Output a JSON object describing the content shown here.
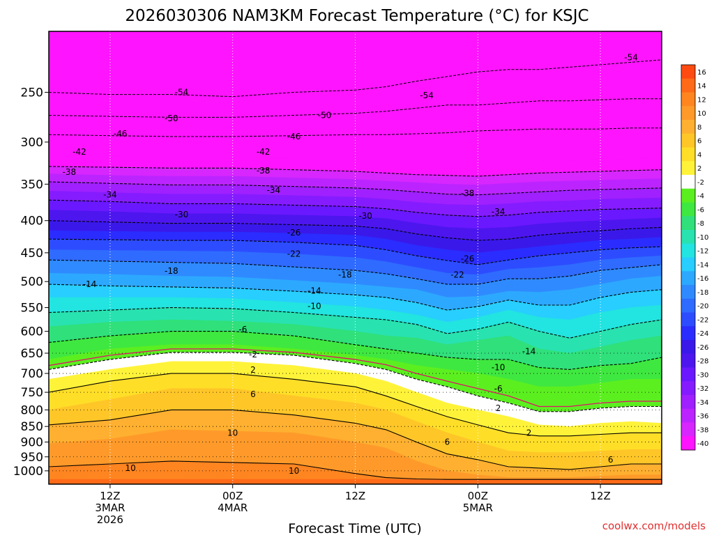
{
  "chart_data": {
    "type": "heatmap",
    "title": "2026030306 NAM3KM Forecast Temperature (°C) for KSJC",
    "xlabel": "Forecast Time (UTC)",
    "ylabel": "",
    "y_scale": "log-pressure",
    "ylim": [
      1050,
      200
    ],
    "y_ticks": [
      250,
      300,
      350,
      400,
      450,
      500,
      550,
      600,
      650,
      700,
      750,
      800,
      850,
      900,
      950,
      1000
    ],
    "x_ticks": [
      {
        "line1": "12Z",
        "line2": "3MAR",
        "line3": "2026"
      },
      {
        "line1": "00Z",
        "line2": "4MAR",
        "line3": ""
      },
      {
        "line1": "12Z",
        "line2": "",
        "line3": ""
      },
      {
        "line1": "00Z",
        "line2": "5MAR",
        "line3": ""
      },
      {
        "line1": "12Z",
        "line2": "",
        "line3": ""
      }
    ],
    "xlim_hours": [
      0,
      60
    ],
    "x_tick_hours": [
      6,
      18,
      30,
      42,
      54
    ],
    "grid": true,
    "colorbar": {
      "position": "right",
      "levels": [
        16,
        14,
        12,
        10,
        8,
        6,
        4,
        2,
        -2,
        -4,
        -6,
        -8,
        -10,
        -12,
        -14,
        -16,
        -18,
        -20,
        -22,
        -24,
        -26,
        -28,
        -30,
        -32,
        -34,
        -36,
        -38,
        -40
      ],
      "colors": [
        "#ff4b12",
        "#ff6a18",
        "#ff8520",
        "#ff9a2a",
        "#ffb030",
        "#ffc628",
        "#ffde28",
        "#fff33a",
        "#ffffff",
        "#5cef20",
        "#3fe840",
        "#30e07a",
        "#28e2b0",
        "#22e4e0",
        "#27ceff",
        "#2da8ff",
        "#2f8aff",
        "#2f6bff",
        "#2d4cff",
        "#2b2cff",
        "#3a18ea",
        "#4d16ee",
        "#6a18ff",
        "#851cff",
        "#a020ff",
        "#bc24ff",
        "#d826ff",
        "#ff14ff"
      ]
    },
    "contour_labels": [
      {
        "value": "-54",
        "hour": 13,
        "p": 250
      },
      {
        "value": "-54",
        "hour": 37,
        "p": 253
      },
      {
        "value": "-54",
        "hour": 57,
        "p": 220
      },
      {
        "value": "-50",
        "hour": 12,
        "p": 275
      },
      {
        "value": "-50",
        "hour": 27,
        "p": 272
      },
      {
        "value": "-46",
        "hour": 7,
        "p": 291
      },
      {
        "value": "-46",
        "hour": 24,
        "p": 294
      },
      {
        "value": "-42",
        "hour": 3,
        "p": 311
      },
      {
        "value": "-42",
        "hour": 21,
        "p": 311
      },
      {
        "value": "-38",
        "hour": 2,
        "p": 335
      },
      {
        "value": "-38",
        "hour": 21,
        "p": 333
      },
      {
        "value": "-38",
        "hour": 41,
        "p": 362
      },
      {
        "value": "-34",
        "hour": 6,
        "p": 364
      },
      {
        "value": "-34",
        "hour": 22,
        "p": 358
      },
      {
        "value": "-34",
        "hour": 44,
        "p": 387
      },
      {
        "value": "-30",
        "hour": 13,
        "p": 391
      },
      {
        "value": "-30",
        "hour": 31,
        "p": 393
      },
      {
        "value": "-26",
        "hour": 24,
        "p": 418
      },
      {
        "value": "-26",
        "hour": 41,
        "p": 460
      },
      {
        "value": "-22",
        "hour": 24,
        "p": 452
      },
      {
        "value": "-22",
        "hour": 40,
        "p": 488
      },
      {
        "value": "-18",
        "hour": 12,
        "p": 481
      },
      {
        "value": "-18",
        "hour": 29,
        "p": 488
      },
      {
        "value": "-14",
        "hour": 4,
        "p": 505
      },
      {
        "value": "-14",
        "hour": 26,
        "p": 517
      },
      {
        "value": "-14",
        "hour": 47,
        "p": 646
      },
      {
        "value": "-10",
        "hour": 26,
        "p": 547
      },
      {
        "value": "-10",
        "hour": 44,
        "p": 685
      },
      {
        "value": "-6",
        "hour": 19,
        "p": 596
      },
      {
        "value": "-6",
        "hour": 44,
        "p": 740
      },
      {
        "value": "-2",
        "hour": 20,
        "p": 653
      },
      {
        "value": "2",
        "hour": 20,
        "p": 691
      },
      {
        "value": "2",
        "hour": 44,
        "p": 795
      },
      {
        "value": "2",
        "hour": 47,
        "p": 870
      },
      {
        "value": "6",
        "hour": 20,
        "p": 756
      },
      {
        "value": "6",
        "hour": 39,
        "p": 900
      },
      {
        "value": "6",
        "hour": 55,
        "p": 960
      },
      {
        "value": "10",
        "hour": 18,
        "p": 870
      },
      {
        "value": "10",
        "hour": 8,
        "p": 990
      },
      {
        "value": "10",
        "hour": 24,
        "p": 1000
      }
    ]
  },
  "footer": {
    "credit": "coolwx.com/models",
    "credit_color": "#e03030"
  }
}
